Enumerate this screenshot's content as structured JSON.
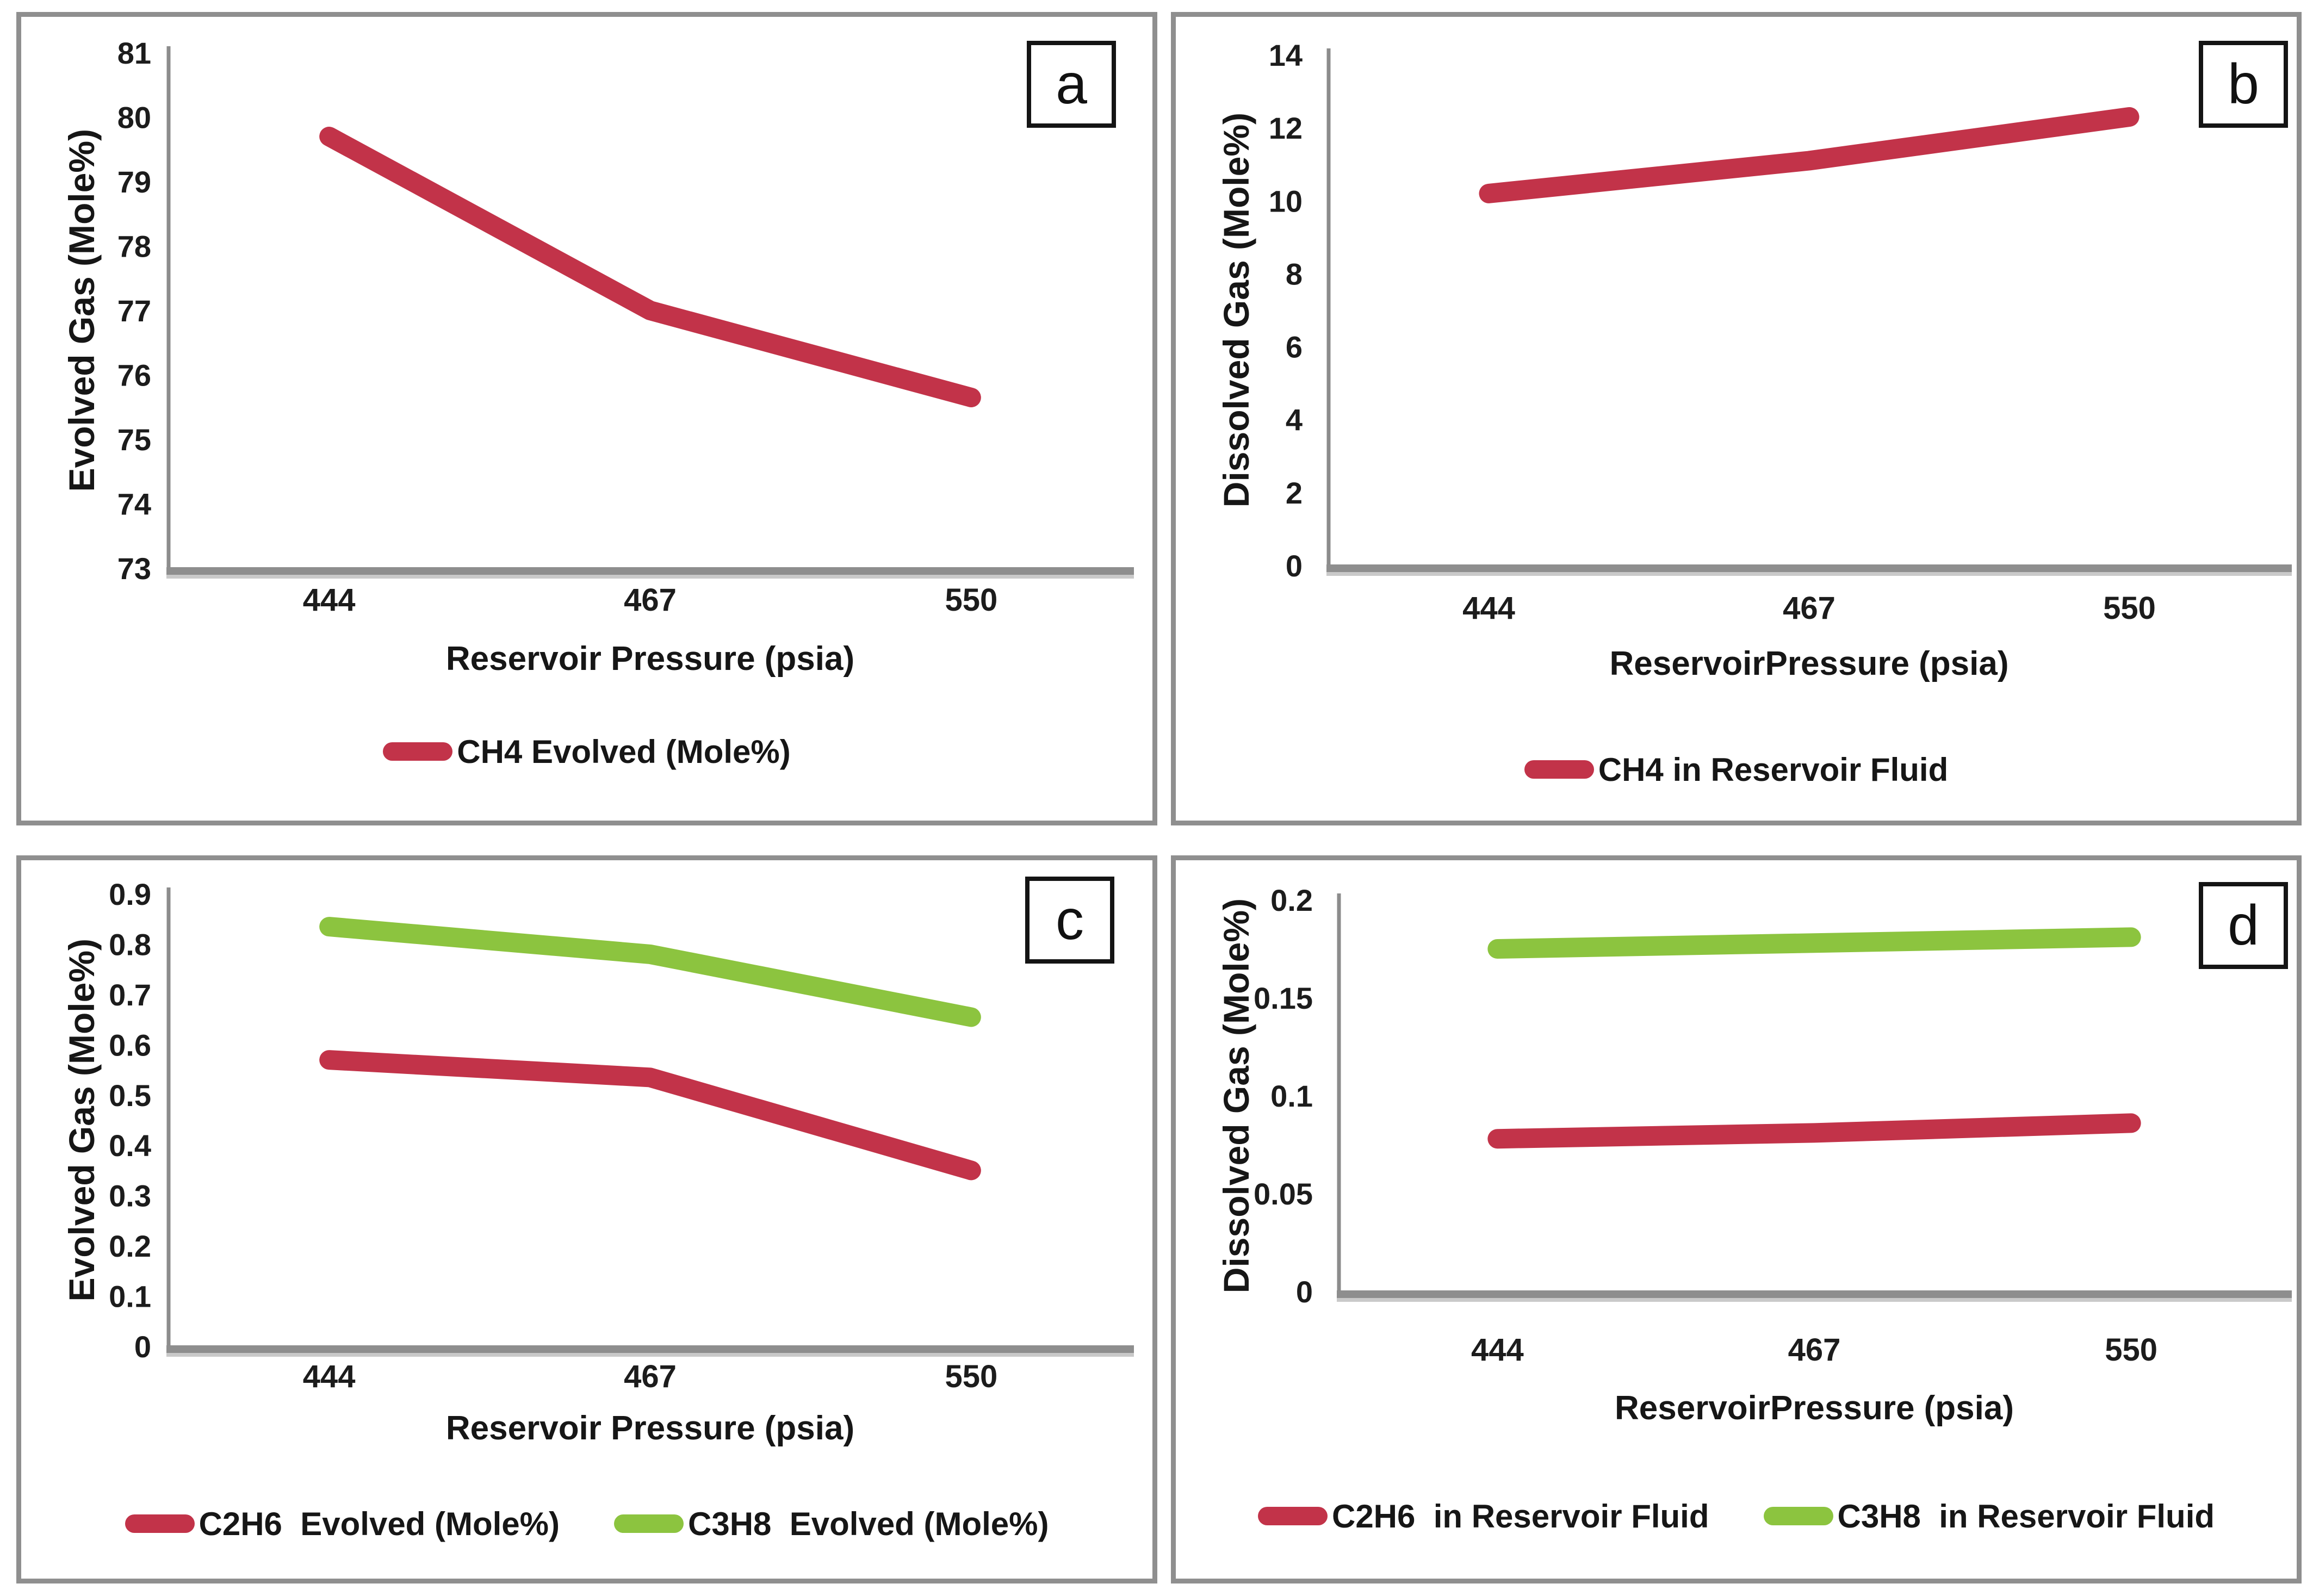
{
  "page": {
    "background": "#ffffff"
  },
  "colors": {
    "series_red": "#c23349",
    "series_green": "#8cc43f",
    "axis_line": "#8c8c8c",
    "baseline_dark": "#8e8e8e",
    "baseline_light": "#c9c9c9",
    "panel_border": "#8f8f8f",
    "text": "#1c1c1c"
  },
  "chart_data": [
    {
      "type": "line",
      "panel_label": "a",
      "title": "",
      "ylabel": "Evolved Gas (Mole%)",
      "xlabel": "Reservoir Pressure (psia)",
      "categories": [
        "444",
        "467",
        "550"
      ],
      "ylim": [
        73,
        81
      ],
      "yticks": [
        "73",
        "74",
        "75",
        "76",
        "77",
        "78",
        "79",
        "80",
        "81"
      ],
      "grid": false,
      "legend_position": "bottom",
      "series": [
        {
          "name": "CH4 Evolved (Mole%)",
          "color": "#c23349",
          "values": [
            79.7,
            77.0,
            75.65
          ]
        }
      ]
    },
    {
      "type": "line",
      "panel_label": "b",
      "title": "",
      "ylabel": "Dissolved Gas (Mole%)",
      "xlabel": "ReservoirPressure (psia)",
      "categories": [
        "444",
        "467",
        "550"
      ],
      "ylim": [
        0,
        14
      ],
      "yticks": [
        "0",
        "2",
        "4",
        "6",
        "8",
        "10",
        "12",
        "14"
      ],
      "grid": false,
      "legend_position": "bottom",
      "series": [
        {
          "name": "CH4 in Reservoir Fluid",
          "color": "#c23349",
          "values": [
            10.2,
            11.1,
            12.3
          ]
        }
      ]
    },
    {
      "type": "line",
      "panel_label": "c",
      "title": "",
      "ylabel": "Evolved Gas (Mole%)",
      "xlabel": "Reservoir Pressure (psia)",
      "categories": [
        "444",
        "467",
        "550"
      ],
      "ylim": [
        0,
        0.9
      ],
      "yticks": [
        "0",
        "0.1",
        "0.2",
        "0.3",
        "0.4",
        "0.5",
        "0.6",
        "0.7",
        "0.8",
        "0.9"
      ],
      "grid": false,
      "legend_position": "bottom",
      "series": [
        {
          "name": "C2H6  Evolved (Mole%)",
          "color": "#c23349",
          "values": [
            0.57,
            0.535,
            0.35
          ]
        },
        {
          "name": "C3H8  Evolved (Mole%)",
          "color": "#8cc43f",
          "values": [
            0.835,
            0.78,
            0.655
          ]
        }
      ]
    },
    {
      "type": "line",
      "panel_label": "d",
      "title": "",
      "ylabel": "Dissolved Gas (Mole%)",
      "xlabel": "ReservoirPressure (psia)",
      "categories": [
        "444",
        "467",
        "550"
      ],
      "ylim": [
        0,
        0.2
      ],
      "yticks": [
        "0",
        "0.05",
        "0.1",
        "0.15",
        "0.2"
      ],
      "grid": false,
      "legend_position": "bottom",
      "series": [
        {
          "name": "C2H6  in Reservoir Fluid",
          "color": "#c23349",
          "values": [
            0.078,
            0.081,
            0.086
          ]
        },
        {
          "name": "C3H8  in Reservoir Fluid",
          "color": "#8cc43f",
          "values": [
            0.175,
            0.178,
            0.181
          ]
        }
      ]
    }
  ]
}
